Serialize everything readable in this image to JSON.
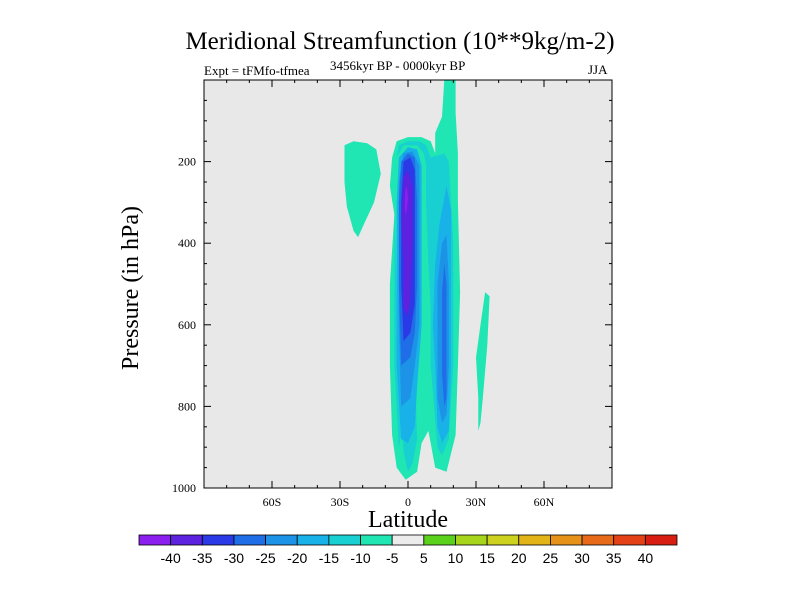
{
  "chart_data": {
    "type": "heatmap",
    "title": "Meridional Streamfunction (10**9kg/m-2)",
    "subtitle_left": "Expt = tFMfo-tfmea",
    "subtitle_center": "3456kyr BP - 0000kyr BP",
    "subtitle_right": "JJA",
    "xlabel": "Latitude",
    "ylabel": "Pressure (in hPa)",
    "xlim": [
      -90,
      90
    ],
    "ylim": [
      0,
      1000
    ],
    "x_ticks": [
      {
        "value": -60,
        "label": "60S"
      },
      {
        "value": -30,
        "label": "30S"
      },
      {
        "value": 0,
        "label": "0"
      },
      {
        "value": 30,
        "label": "30N"
      },
      {
        "value": 60,
        "label": "60N"
      }
    ],
    "y_ticks": [
      {
        "value": 200,
        "label": "200"
      },
      {
        "value": 400,
        "label": "400"
      },
      {
        "value": 600,
        "label": "600"
      },
      {
        "value": 800,
        "label": "800"
      },
      {
        "value": 1000,
        "label": "1000"
      }
    ],
    "background_color": "#e8e8e8",
    "colorbar": {
      "labels": [
        "-40",
        "-35",
        "-30",
        "-25",
        "-20",
        "-15",
        "-10",
        "-5",
        "5",
        "10",
        "15",
        "20",
        "25",
        "30",
        "35",
        "40"
      ],
      "colors": [
        "#8a1ff0",
        "#5c22e0",
        "#2a3ae6",
        "#1f6ee8",
        "#1c93e6",
        "#18b1e8",
        "#18d0d2",
        "#1fe6b2",
        "#ececec",
        "#5ad21c",
        "#a6d51c",
        "#cdd21f",
        "#e2b417",
        "#e69118",
        "#e66a18",
        "#e44216",
        "#d81e12"
      ]
    },
    "contours": [
      {
        "level": -5,
        "color": "#1fe6b2",
        "points": [
          [
            -24,
            370
          ],
          [
            -27,
            310
          ],
          [
            -28,
            250
          ],
          [
            -28,
            160
          ],
          [
            -24,
            150
          ],
          [
            -18,
            155
          ],
          [
            -14,
            170
          ],
          [
            -12,
            230
          ],
          [
            -15,
            300
          ],
          [
            -20,
            360
          ],
          [
            -22,
            385
          ]
        ]
      },
      {
        "level": -5,
        "color": "#1fe6b2",
        "points": [
          [
            -6,
            330
          ],
          [
            -8,
            260
          ],
          [
            -7,
            190
          ],
          [
            -5,
            150
          ],
          [
            0,
            140
          ],
          [
            6,
            140
          ],
          [
            10,
            150
          ],
          [
            12,
            180
          ],
          [
            12,
            130
          ],
          [
            15,
            90
          ],
          [
            16,
            0
          ],
          [
            21,
            0
          ],
          [
            21,
            80
          ],
          [
            22,
            180
          ],
          [
            22,
            300
          ],
          [
            23,
            520
          ],
          [
            22,
            700
          ],
          [
            21,
            870
          ],
          [
            17,
            960
          ],
          [
            12,
            950
          ],
          [
            9,
            860
          ],
          [
            6,
            890
          ],
          [
            4,
            960
          ],
          [
            -1,
            980
          ],
          [
            -5,
            950
          ],
          [
            -7,
            870
          ],
          [
            -8,
            700
          ],
          [
            -8,
            500
          ]
        ]
      },
      {
        "level": -10,
        "color": "#18d0d2",
        "points": [
          [
            -4,
            900
          ],
          [
            -6,
            700
          ],
          [
            -6,
            500
          ],
          [
            -6,
            320
          ],
          [
            -5,
            190
          ],
          [
            -2,
            160
          ],
          [
            4,
            160
          ],
          [
            7,
            180
          ],
          [
            8,
            210
          ],
          [
            8,
            300
          ],
          [
            9,
            450
          ],
          [
            10,
            560
          ],
          [
            10,
            700
          ],
          [
            13,
            900
          ],
          [
            15,
            920
          ],
          [
            18,
            880
          ],
          [
            20,
            700
          ],
          [
            20,
            400
          ],
          [
            18,
            200
          ],
          [
            16,
            180
          ],
          [
            10,
            190
          ],
          [
            8,
            160
          ],
          [
            5,
            150
          ],
          [
            0,
            150
          ],
          [
            -4,
            160
          ],
          [
            -5,
            190
          ],
          [
            -6,
            320
          ],
          [
            -5,
            500
          ],
          [
            -4,
            700
          ],
          [
            -2,
            910
          ],
          [
            0,
            960
          ],
          [
            2,
            940
          ],
          [
            4,
            880
          ],
          [
            3,
            700
          ]
        ]
      },
      {
        "level": -15,
        "color": "#18b1e8",
        "points": [
          [
            -3,
            880
          ],
          [
            -5,
            700
          ],
          [
            -5,
            500
          ],
          [
            -5,
            300
          ],
          [
            -4,
            190
          ],
          [
            0,
            165
          ],
          [
            4,
            170
          ],
          [
            6,
            210
          ],
          [
            6,
            400
          ],
          [
            6,
            600
          ],
          [
            4,
            750
          ],
          [
            3,
            850
          ],
          [
            0,
            890
          ]
        ]
      },
      {
        "level": -15,
        "color": "#18b1e8",
        "points": [
          [
            11,
            600
          ],
          [
            12,
            450
          ],
          [
            14,
            350
          ],
          [
            17,
            260
          ],
          [
            19,
            320
          ],
          [
            19,
            500
          ],
          [
            19,
            700
          ],
          [
            18,
            860
          ],
          [
            15,
            890
          ],
          [
            13,
            850
          ],
          [
            12,
            700
          ]
        ]
      },
      {
        "level": -20,
        "color": "#1c93e6",
        "points": [
          [
            -3,
            800
          ],
          [
            -4,
            600
          ],
          [
            -4,
            400
          ],
          [
            -4,
            250
          ],
          [
            -2,
            180
          ],
          [
            2,
            175
          ],
          [
            5,
            210
          ],
          [
            5,
            400
          ],
          [
            5,
            600
          ],
          [
            3,
            700
          ],
          [
            1,
            780
          ]
        ]
      },
      {
        "level": -20,
        "color": "#1c93e6",
        "points": [
          [
            13,
            650
          ],
          [
            13,
            500
          ],
          [
            15,
            400
          ],
          [
            17,
            380
          ],
          [
            18,
            500
          ],
          [
            18,
            700
          ],
          [
            17,
            820
          ],
          [
            15,
            840
          ],
          [
            13,
            780
          ]
        ]
      },
      {
        "level": -25,
        "color": "#1f6ee8",
        "points": [
          [
            -3,
            700
          ],
          [
            -4,
            500
          ],
          [
            -4,
            300
          ],
          [
            -3,
            200
          ],
          [
            0,
            180
          ],
          [
            3,
            190
          ],
          [
            4,
            300
          ],
          [
            4,
            500
          ],
          [
            3,
            620
          ],
          [
            1,
            680
          ]
        ]
      },
      {
        "level": -25,
        "color": "#1f6ee8",
        "points": [
          [
            15,
            600
          ],
          [
            15,
            520
          ],
          [
            16,
            450
          ],
          [
            17,
            500
          ],
          [
            17,
            650
          ],
          [
            17,
            780
          ],
          [
            16,
            800
          ],
          [
            15,
            720
          ]
        ]
      },
      {
        "level": -30,
        "color": "#2a3ae6",
        "points": [
          [
            -2,
            640
          ],
          [
            -3,
            500
          ],
          [
            -3,
            300
          ],
          [
            -2,
            200
          ],
          [
            1,
            190
          ],
          [
            3,
            220
          ],
          [
            3,
            400
          ],
          [
            3,
            550
          ],
          [
            1,
            620
          ]
        ]
      },
      {
        "level": -35,
        "color": "#5c22e0",
        "points": [
          [
            -2,
            560
          ],
          [
            -2,
            450
          ],
          [
            -3,
            330
          ],
          [
            -2,
            240
          ],
          [
            0,
            220
          ],
          [
            2,
            260
          ],
          [
            2,
            400
          ],
          [
            1,
            540
          ],
          [
            0,
            580
          ]
        ]
      },
      {
        "level": -40,
        "color": "#8a1ff0",
        "points": [
          [
            -1.5,
            310
          ],
          [
            -1.2,
            270
          ],
          [
            -0.5,
            260
          ],
          [
            0,
            290
          ],
          [
            -0.5,
            320
          ],
          [
            -1,
            330
          ]
        ]
      },
      {
        "level": -5,
        "color": "#1fe6b2",
        "points": [
          [
            31,
            780
          ],
          [
            30,
            680
          ],
          [
            32,
            600
          ],
          [
            34,
            520
          ],
          [
            36,
            530
          ],
          [
            35,
            650
          ],
          [
            33,
            780
          ],
          [
            32,
            840
          ],
          [
            31,
            860
          ]
        ]
      }
    ]
  }
}
